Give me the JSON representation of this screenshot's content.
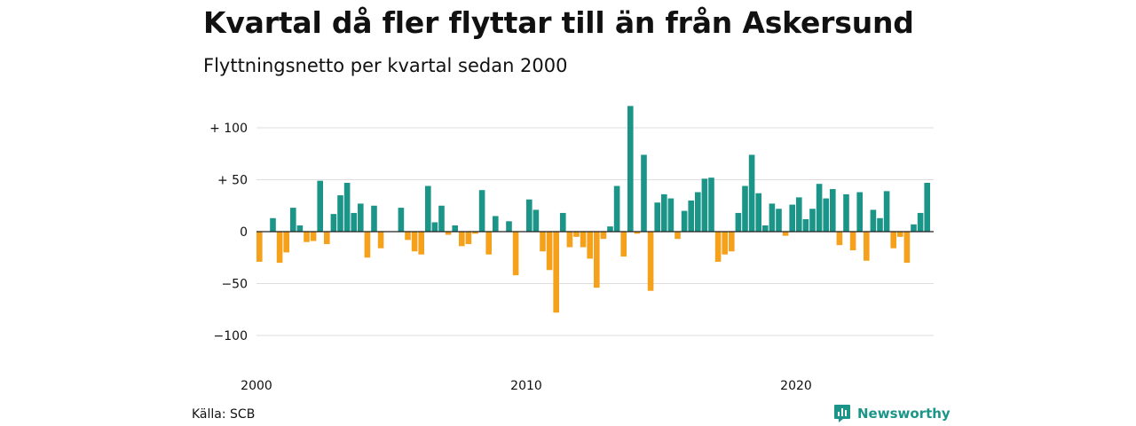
{
  "title": "Kvartal då fler flyttar till än från Askersund",
  "subtitle": "Flyttningsnetto per kvartal sedan 2000",
  "source": "Källa: SCB",
  "brand": {
    "name": "Newsworthy",
    "icon": "newsworthy-logo-icon"
  },
  "colors": {
    "positive": "#1a9588",
    "negative": "#f5a11c",
    "grid": "#dddddd",
    "zero": "#222222"
  },
  "chart_data": {
    "type": "bar",
    "title": "Kvartal då fler flyttar till än från Askersund",
    "subtitle": "Flyttningsnetto per kvartal sedan 2000",
    "xlabel": "",
    "ylabel": "",
    "x_ticks": [
      {
        "label": "2000",
        "year": 2000
      },
      {
        "label": "2010",
        "year": 2010
      },
      {
        "label": "2020",
        "year": 2020
      }
    ],
    "y_ticks": [
      {
        "label": "+ 100",
        "value": 100
      },
      {
        "label": "+  50",
        "value": 50
      },
      {
        "label": "0",
        "value": 0
      },
      {
        "label": "−50",
        "value": -50
      },
      {
        "label": "−100",
        "value": -100
      }
    ],
    "ylim": [
      -110,
      125
    ],
    "grid": true,
    "start_quarter": "2000 Q1",
    "values": [
      -29,
      0,
      13,
      -30,
      -20,
      23,
      6,
      -10,
      -9,
      49,
      -12,
      17,
      35,
      47,
      18,
      27,
      -25,
      25,
      -16,
      0,
      0,
      23,
      -8,
      -19,
      -22,
      44,
      9,
      25,
      -3,
      6,
      -14,
      -12,
      -2,
      40,
      -22,
      15,
      0,
      10,
      -42,
      0,
      31,
      21,
      -19,
      -37,
      -78,
      18,
      -15,
      -5,
      -15,
      -26,
      -54,
      -7,
      5,
      44,
      -24,
      121,
      -2,
      74,
      -57,
      28,
      36,
      32,
      -7,
      20,
      30,
      38,
      51,
      52,
      -29,
      -22,
      -19,
      18,
      44,
      74,
      37,
      6,
      27,
      22,
      -4,
      26,
      33,
      12,
      22,
      46,
      32,
      41,
      -13,
      36,
      -18,
      38,
      -28,
      21,
      13,
      39,
      -16,
      -5,
      -30,
      7,
      18,
      47
    ]
  }
}
